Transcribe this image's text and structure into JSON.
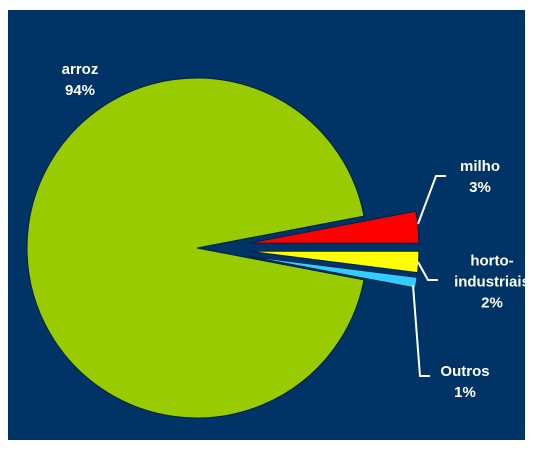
{
  "chart_data": {
    "type": "pie",
    "categories": [
      "arroz",
      "milho",
      "horto-industriais",
      "Outros"
    ],
    "values": [
      94,
      3,
      2,
      1
    ],
    "value_labels": [
      "94%",
      "3%",
      "2%",
      "1%"
    ],
    "colors": [
      "#99cc00",
      "#ff0000",
      "#ffff00",
      "#33ccff"
    ]
  }
}
